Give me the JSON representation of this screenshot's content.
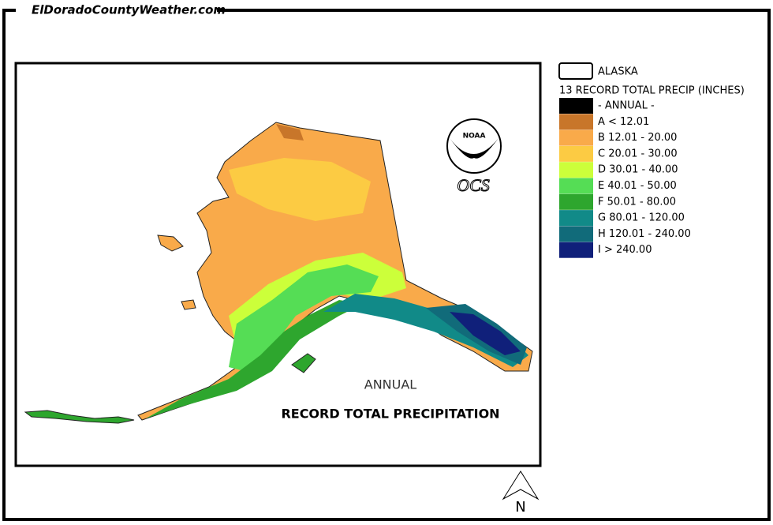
{
  "header": {
    "site": "ElDoradoCountyWeather.com"
  },
  "legend": {
    "boundary_label": "ALASKA",
    "title": "13 RECORD TOTAL PRECIP (INCHES)",
    "period": {
      "label": "- ANNUAL -",
      "color": "#000000"
    },
    "items": [
      {
        "label": "A < 12.01",
        "color": "#c8762a"
      },
      {
        "label": "B 12.01 - 20.00",
        "color": "#f9aa4a"
      },
      {
        "label": "C 20.01 - 30.00",
        "color": "#fccb43"
      },
      {
        "label": "D 30.01 - 40.00",
        "color": "#ccff3a"
      },
      {
        "label": "E 40.01 - 50.00",
        "color": "#55dd55"
      },
      {
        "label": "F 50.01 - 80.00",
        "color": "#2ea62e"
      },
      {
        "label": "G 80.01 - 120.00",
        "color": "#118a88"
      },
      {
        "label": "H 120.01 - 240.00",
        "color": "#116b7a"
      },
      {
        "label": "I > 240.00",
        "color": "#10207a"
      }
    ]
  },
  "map": {
    "period": "ANNUAL",
    "title": "RECORD TOTAL PRECIPITATION",
    "noaa": "NOAA",
    "logo": "OCS",
    "north": "N"
  }
}
